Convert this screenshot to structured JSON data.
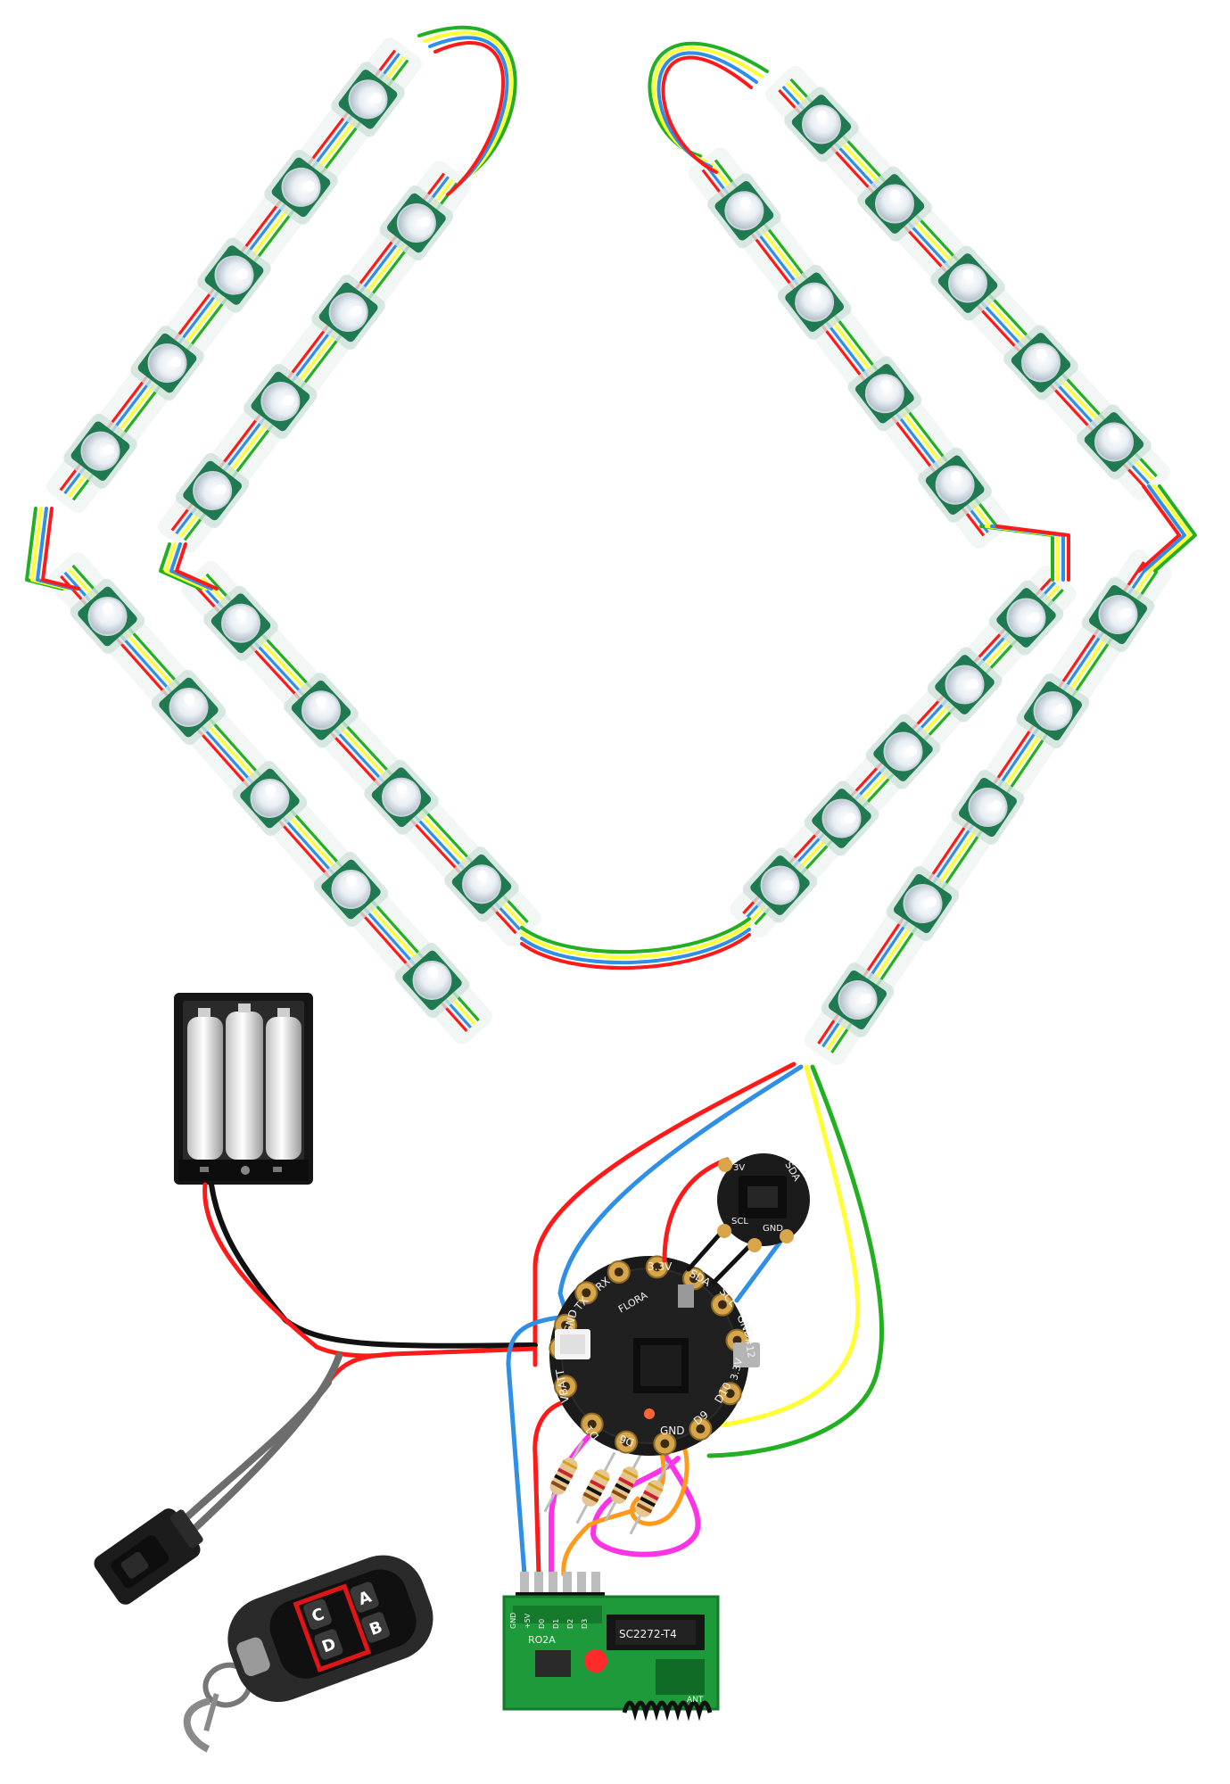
{
  "colors": {
    "red": "#ff1a1a",
    "blue": "#2f8fe6",
    "yellow": "#ffff33",
    "green": "#22b020",
    "black": "#111111",
    "magenta": "#ff33e6",
    "orange": "#ff9a1a",
    "gray": "#6d6d6d",
    "pcb_green": "#1f7a52",
    "board_black": "#1a1a1a",
    "pad_gold": "#d9a54a"
  },
  "flora": {
    "labels": {
      "rx": "RX",
      "v33": "3.3V",
      "sda": "SDA",
      "scl": "SCL",
      "gnd_r": "GND",
      "gnd_l": "GND",
      "vbatt": "VBATT",
      "d1": "D1",
      "d6": "D6",
      "gnd_b": "GND",
      "d9": "D9",
      "d10": "D10",
      "v33b": "3.3V",
      "d12": "#12",
      "txd": "TX",
      "brand": "FLORA"
    }
  },
  "sensor": {
    "labels": {
      "sda": "SDA",
      "scl": "SCL",
      "gnd": "GND",
      "v3": "3V"
    }
  },
  "receiver": {
    "labels": {
      "model": "RO2A",
      "chip": "SC2272-T4",
      "pin_gnd": "GND",
      "pin_5v": "+5V",
      "pin_d0": "D0",
      "pin_d1": "D1",
      "pin_d2": "D2",
      "pin_d3": "D3",
      "ant": "ANT"
    }
  },
  "remote": {
    "keys": [
      "A",
      "B",
      "C",
      "D"
    ]
  }
}
